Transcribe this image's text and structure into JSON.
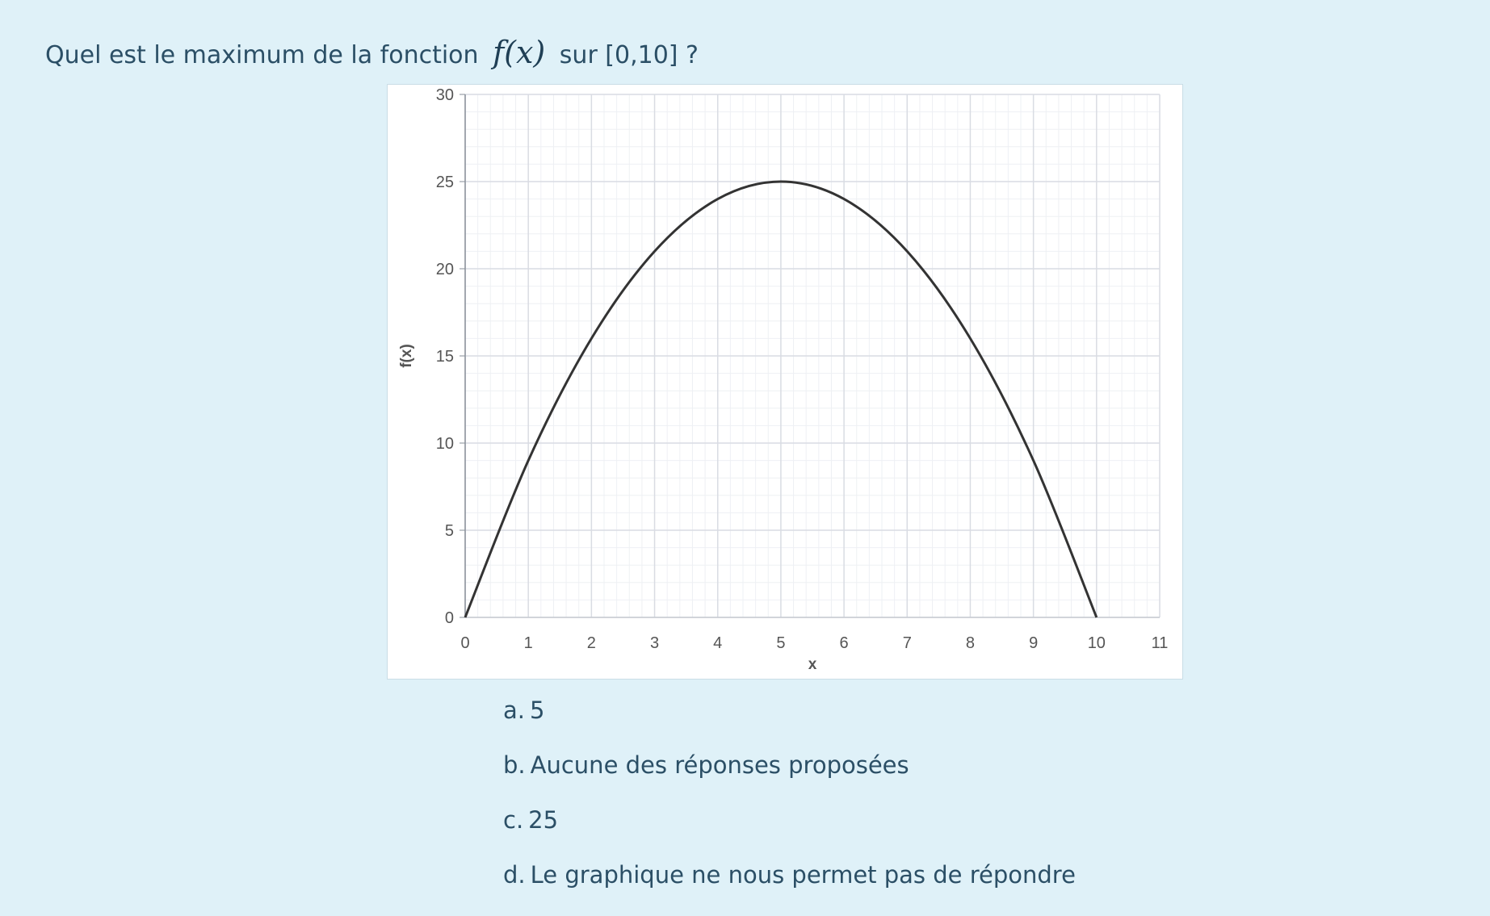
{
  "question": {
    "before": "Quel est le maximum de la fonction",
    "math": "f(x)",
    "after": "sur [0,10] ?"
  },
  "answers": [
    {
      "letter": "a.",
      "text": "5"
    },
    {
      "letter": "b.",
      "text": "Aucune des réponses proposées"
    },
    {
      "letter": "c.",
      "text": "25"
    },
    {
      "letter": "d.",
      "text": "Le graphique ne nous permet pas de répondre"
    }
  ],
  "colors": {
    "background": "#dff1f8",
    "text": "#2b4f66",
    "curve": "#333333",
    "grid_major": "#d9dce3",
    "grid_minor": "#eef0f4"
  },
  "chart_data": {
    "type": "line",
    "title": "",
    "xlabel": "x",
    "ylabel": "f(x)",
    "xlim": [
      0,
      11
    ],
    "ylim": [
      0,
      30
    ],
    "xticks": [
      "0",
      "1",
      "2",
      "3",
      "4",
      "5",
      "6",
      "7",
      "8",
      "9",
      "10",
      "11"
    ],
    "yticks": [
      "0",
      "5",
      "10",
      "15",
      "20",
      "25",
      "30"
    ],
    "grid": true,
    "legend": "none",
    "series": [
      {
        "x": [
          0,
          1,
          2,
          3,
          4,
          5,
          6,
          7,
          8,
          9,
          10
        ],
        "y": [
          0,
          9,
          16,
          21,
          24,
          25,
          24,
          21,
          16,
          9,
          0
        ]
      }
    ]
  }
}
